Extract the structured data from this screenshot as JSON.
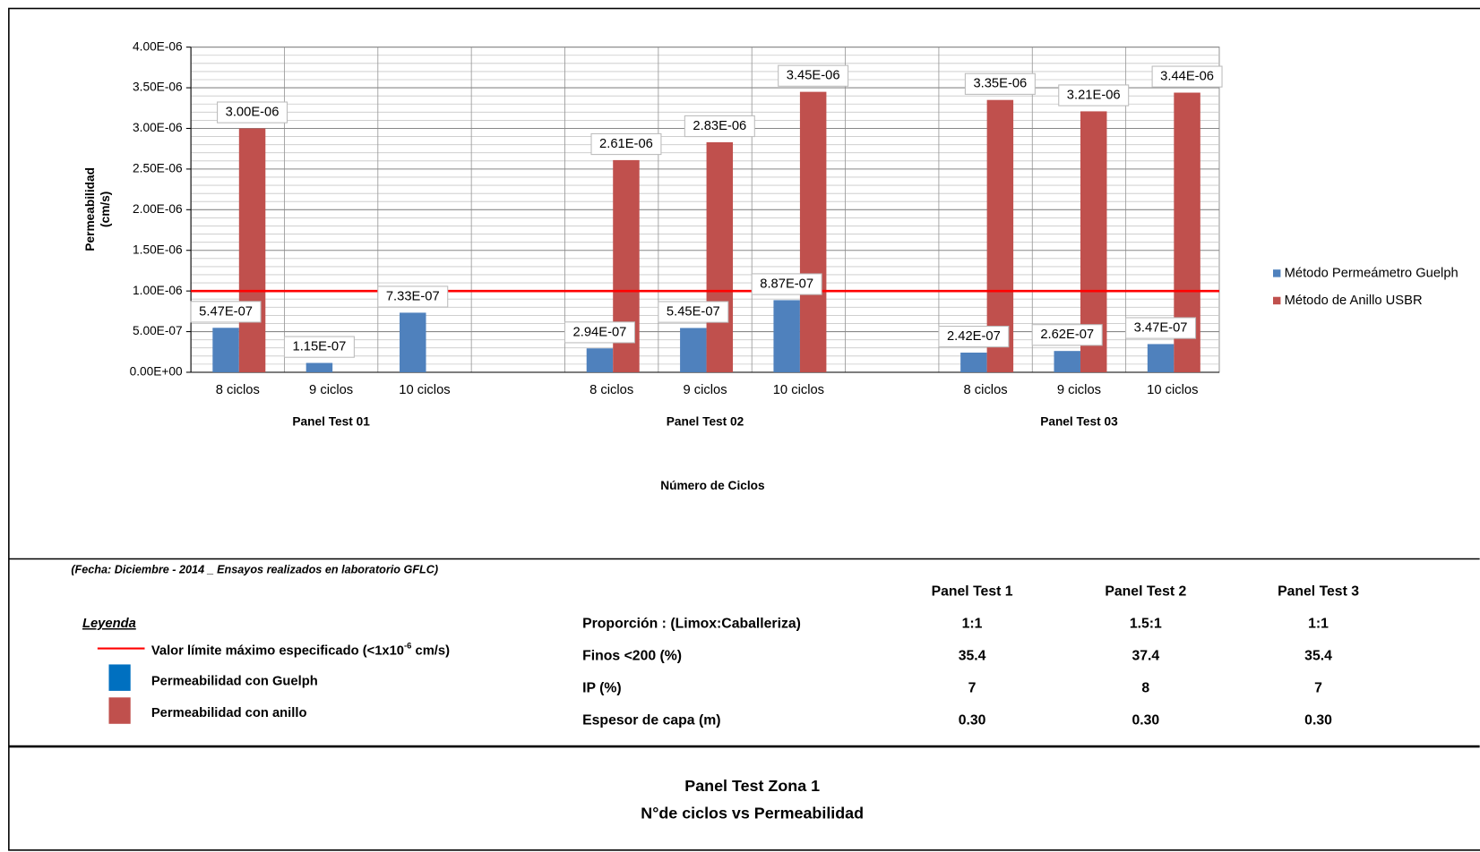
{
  "chart_data": {
    "type": "bar",
    "x_label": "Número de Ciclos",
    "y_label": [
      "Permeabilidad",
      "(cm/s)"
    ],
    "categories": [
      "8 ciclos",
      "9 ciclos",
      "10 ciclos",
      null,
      "8 ciclos",
      "9 ciclos",
      "10 ciclos",
      null,
      "8 ciclos",
      "9 ciclos",
      "10 ciclos"
    ],
    "groups": [
      {
        "name": "Panel Test 01",
        "center": 1
      },
      {
        "name": "Panel Test 02",
        "center": 5
      },
      {
        "name": "Panel Test 03",
        "center": 9
      }
    ],
    "series": [
      {
        "name": "Método Permeámetro Guelph",
        "color": "#4f81bd",
        "values": [
          5.47e-07,
          1.15e-07,
          7.33e-07,
          null,
          2.94e-07,
          5.45e-07,
          8.87e-07,
          null,
          2.42e-07,
          2.62e-07,
          3.47e-07
        ],
        "value_labels": [
          "5.47E-07",
          "1.15E-07",
          "7.33E-07",
          null,
          "2.94E-07",
          "5.45E-07",
          "8.87E-07",
          null,
          "2.42E-07",
          "2.62E-07",
          "3.47E-07"
        ]
      },
      {
        "name": "Método de Anillo USBR",
        "color": "#c0504d",
        "values": [
          3e-06,
          null,
          null,
          null,
          2.61e-06,
          2.83e-06,
          3.45e-06,
          null,
          3.35e-06,
          3.21e-06,
          3.44e-06
        ],
        "value_labels": [
          "3.00E-06",
          null,
          null,
          null,
          "2.61E-06",
          "2.83E-06",
          "3.45E-06",
          null,
          "3.35E-06",
          "3.21E-06",
          "3.44E-06"
        ]
      }
    ],
    "ylim": [
      0,
      4e-06
    ],
    "yticks": [
      {
        "value": 0,
        "label": "0.00E+00"
      },
      {
        "value": 5e-07,
        "label": "5.00E-07"
      },
      {
        "value": 1e-06,
        "label": "1.00E-06"
      },
      {
        "value": 1.5e-06,
        "label": "1.50E-06"
      },
      {
        "value": 2e-06,
        "label": "2.00E-06"
      },
      {
        "value": 2.5e-06,
        "label": "2.50E-06"
      },
      {
        "value": 3e-06,
        "label": "3.00E-06"
      },
      {
        "value": 3.5e-06,
        "label": "3.50E-06"
      },
      {
        "value": 4e-06,
        "label": "4.00E-06"
      }
    ],
    "yminorticks": [
      1e-07,
      2e-07,
      3e-07,
      4e-07,
      6e-07,
      7e-07,
      8e-07,
      9e-07,
      1.1e-06,
      1.2e-06,
      1.3e-06,
      1.4e-06,
      1.6e-06,
      1.7e-06,
      1.8e-06,
      1.9e-06,
      2.1e-06,
      2.2e-06,
      2.3e-06,
      2.4e-06,
      2.6e-06,
      2.7e-06,
      2.8e-06,
      2.9e-06,
      3.1e-06,
      3.2e-06,
      3.3e-06,
      3.4e-06,
      3.6e-06,
      3.7e-06,
      3.8e-06,
      3.9e-06
    ],
    "reference_line": {
      "value": 1e-06,
      "color": "#ff0000"
    },
    "grid": true,
    "legend": "right"
  },
  "note": "(Fecha: Diciembre - 2014 _ Ensayos realizados en laboratorio GFLC)",
  "legend": {
    "title": "Leyenda",
    "limit": {
      "text": "Valor límite máximo especificado (<1x10",
      "sup": "-6",
      "tail": " cm/s)"
    },
    "guelph": "Permeabilidad con Guelph",
    "anillo": "Permeabilidad con anillo"
  },
  "table": {
    "headers": [
      "Panel Test 1",
      "Panel Test 2",
      "Panel Test 3"
    ],
    "rows": [
      {
        "label": "Proporción : (Limox:Caballeriza)",
        "values": [
          "1:1",
          "1.5:1",
          "1:1"
        ]
      },
      {
        "label": "Finos <200 (%)",
        "values": [
          "35.4",
          "37.4",
          "35.4"
        ]
      },
      {
        "label": "IP (%)",
        "values": [
          "7",
          "8",
          "7"
        ]
      },
      {
        "label": "Espesor de capa (m)",
        "values": [
          "0.30",
          "0.30",
          "0.30"
        ]
      }
    ]
  },
  "footer": {
    "title": "Panel Test Zona 1",
    "subtitle": "N°de ciclos vs Permeabilidad"
  }
}
